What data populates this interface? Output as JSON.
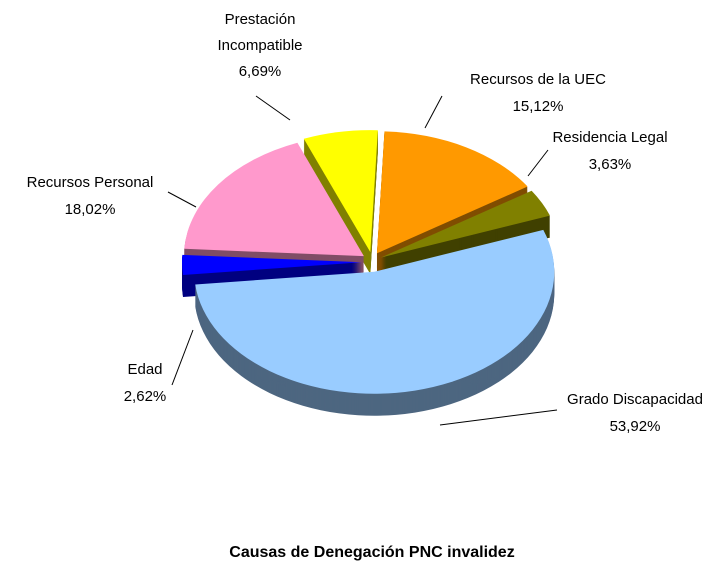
{
  "chart_data": {
    "type": "pie3d",
    "title": "Causas de Denegación PNC invalidez",
    "categories": [
      "Grado Discapacidad",
      "Edad",
      "Recursos Personal",
      "Prestación Incompatible",
      "Recursos de la UEC",
      "Residencia Legal"
    ],
    "values": [
      53.92,
      2.62,
      18.02,
      6.69,
      15.12,
      3.63
    ],
    "value_labels": [
      "53,92%",
      "2,62%",
      "18,02%",
      "6,69%",
      "15,12%",
      "3,63%"
    ],
    "colors": [
      "#99ccff",
      "#0000ff",
      "#ff99cc",
      "#ffff00",
      "#ff9900",
      "#808000"
    ]
  }
}
